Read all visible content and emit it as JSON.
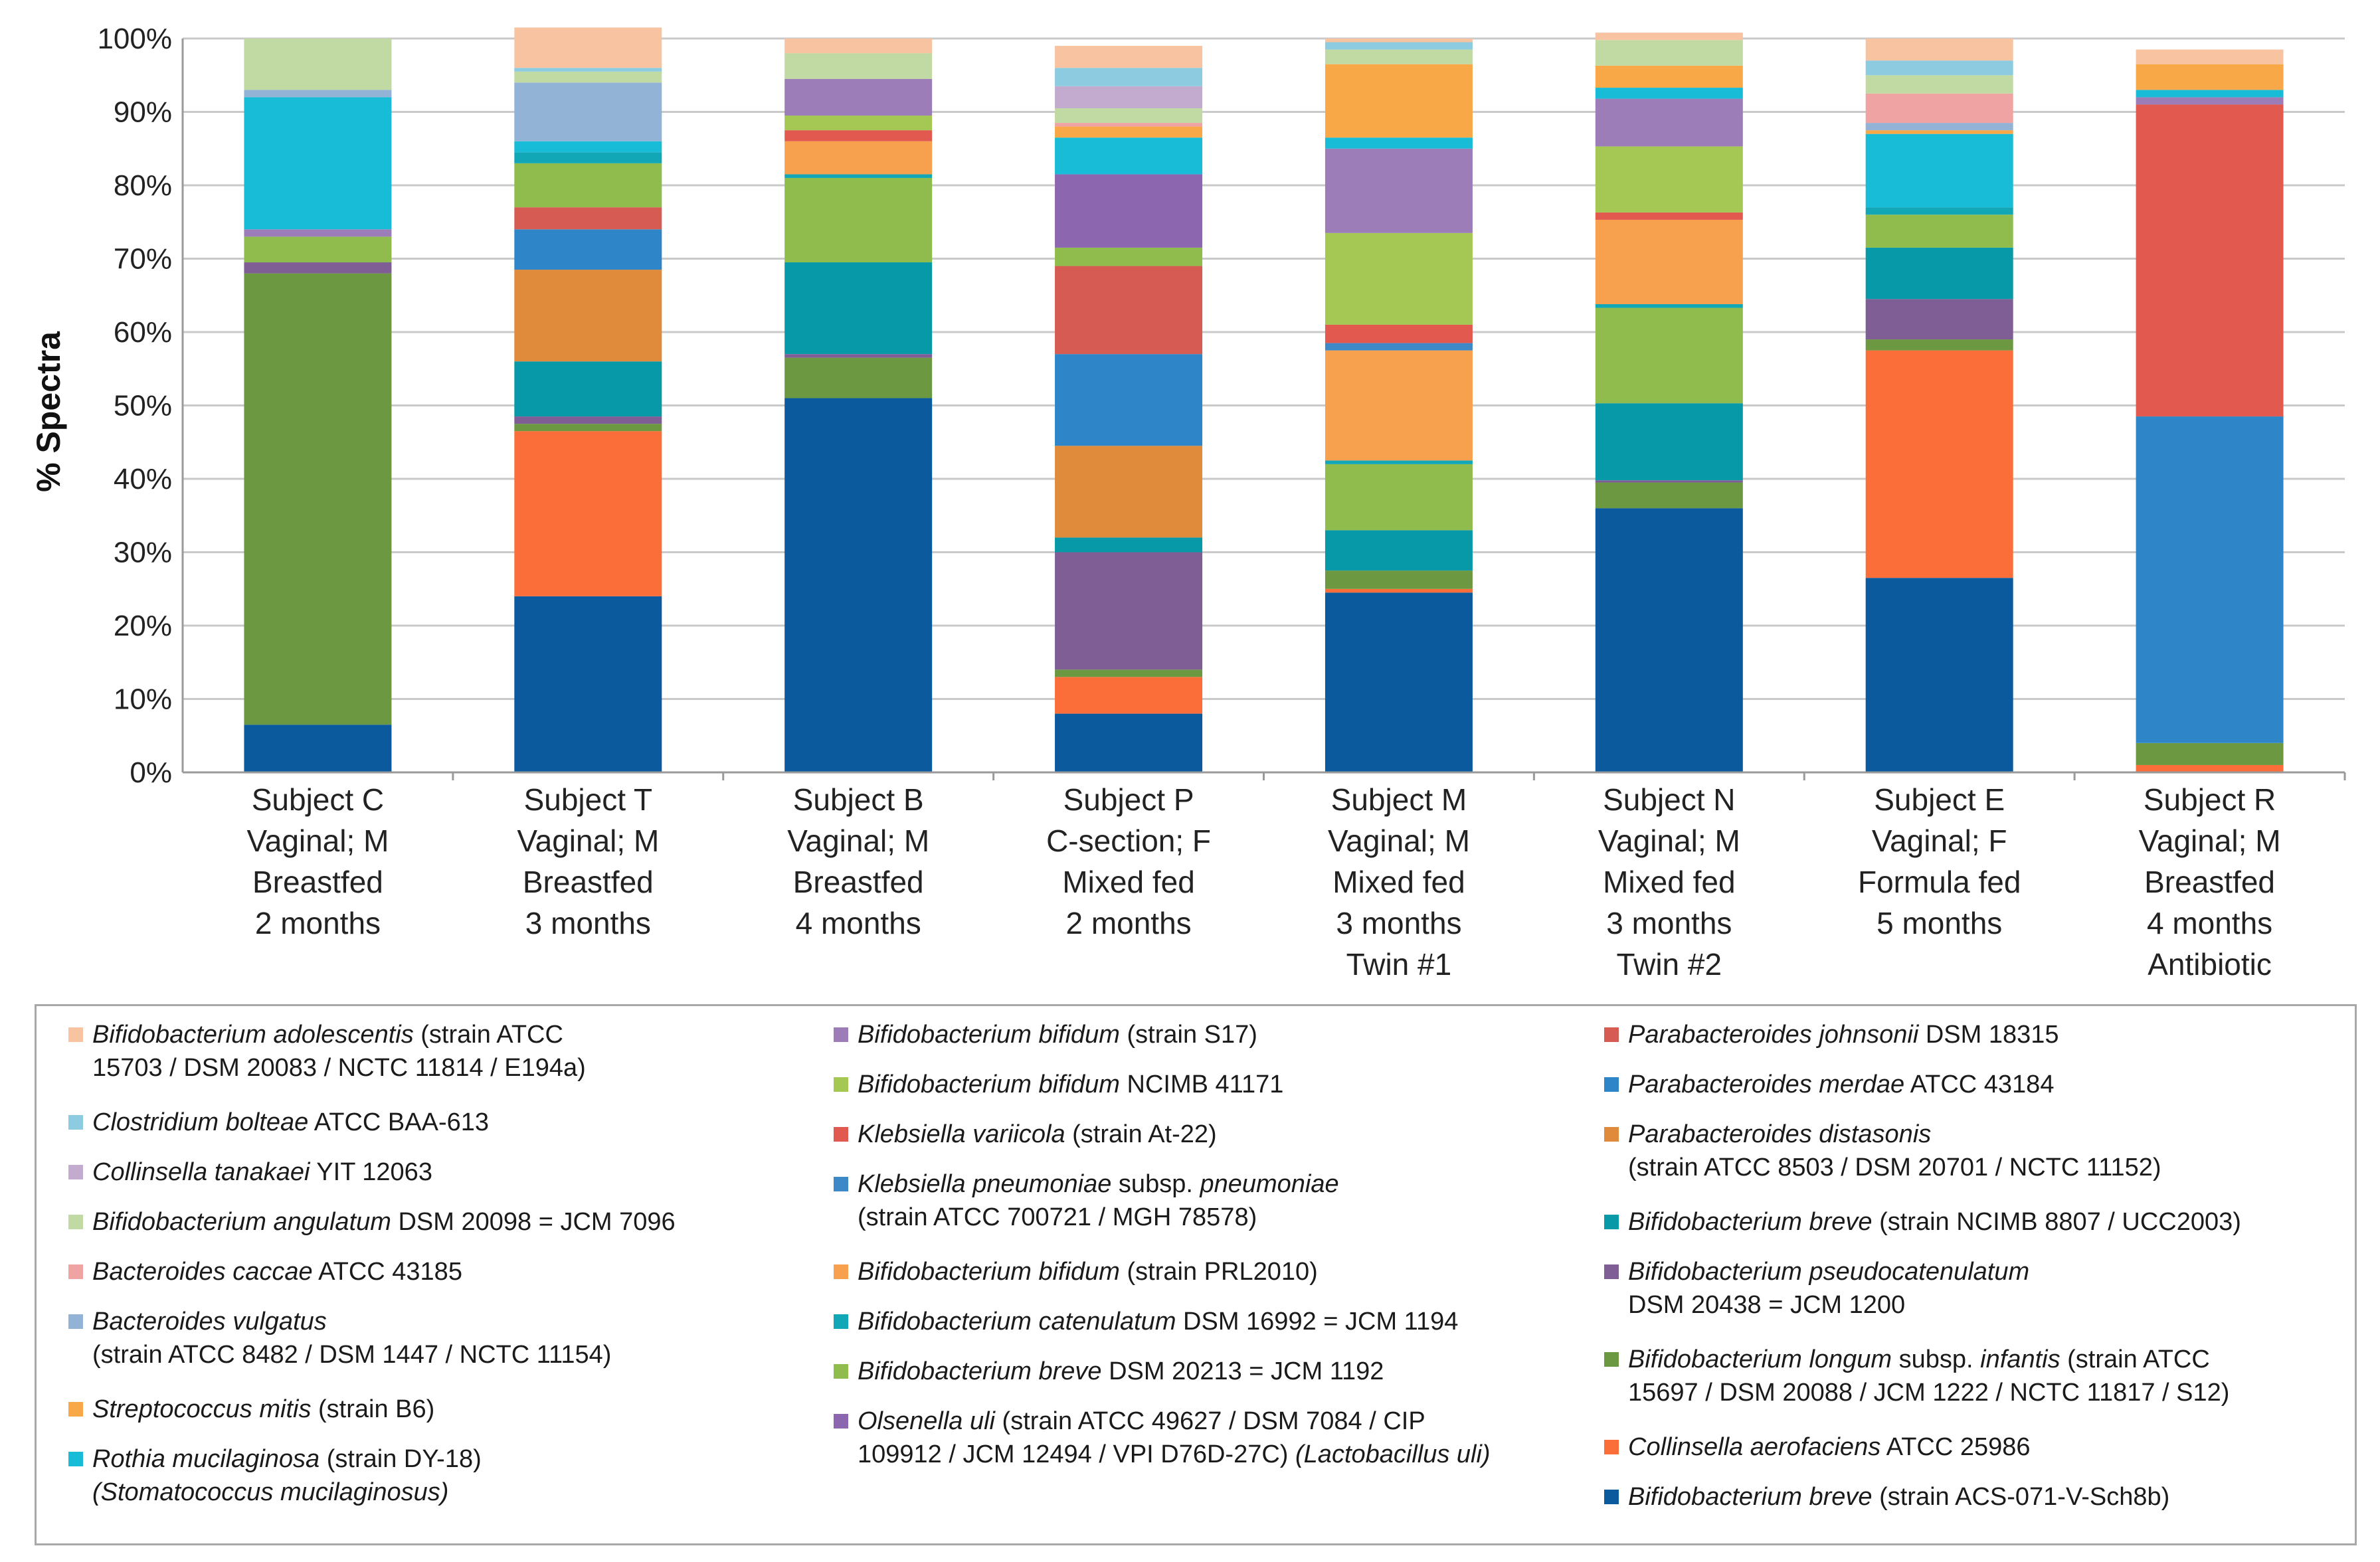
{
  "chart_data": {
    "type": "stacked-bar",
    "ylabel": "% Spectra",
    "ylim": [
      0,
      100
    ],
    "yticks": [
      "0%",
      "10%",
      "20%",
      "30%",
      "40%",
      "50%",
      "60%",
      "70%",
      "80%",
      "90%",
      "100%"
    ],
    "grid": true,
    "legend_position": "bottom",
    "categories": [
      [
        "Subject C",
        "Vaginal; M",
        "Breastfed",
        "2 months"
      ],
      [
        "Subject T",
        "Vaginal; M",
        "Breastfed",
        "3 months"
      ],
      [
        "Subject B",
        "Vaginal; M",
        "Breastfed",
        "4 months"
      ],
      [
        "Subject P",
        "C-section; F",
        "Mixed fed",
        "2 months"
      ],
      [
        "Subject M",
        "Vaginal; M",
        "Mixed fed",
        "3 months",
        "Twin #1"
      ],
      [
        "Subject N",
        "Vaginal; M",
        "Mixed fed",
        "3 months",
        "Twin #2"
      ],
      [
        "Subject E",
        "Vaginal; F",
        "Formula fed",
        "5 months"
      ],
      [
        "Subject R",
        "Vaginal; M",
        "Breastfed",
        "4 months",
        "Antibiotic"
      ]
    ],
    "series": [
      {
        "id": "bb_acs",
        "color": "#0b5a9e",
        "values": [
          6.5,
          24,
          51,
          8,
          24.5,
          36,
          26.5,
          0
        ]
      },
      {
        "id": "coll_aero",
        "color": "#fb6e3a",
        "values": [
          0,
          22.5,
          0,
          5,
          0.5,
          0,
          31,
          1
        ]
      },
      {
        "id": "bl_infantis",
        "color": "#6b9840",
        "values": [
          61.5,
          1,
          5.5,
          1,
          2.5,
          3.5,
          1.5,
          3
        ]
      },
      {
        "id": "b_pseudocat",
        "color": "#7f5e96",
        "values": [
          1.5,
          1,
          0.5,
          16,
          0,
          0.3,
          5.5,
          0
        ]
      },
      {
        "id": "bb_ncimb",
        "color": "#0799a8",
        "values": [
          0,
          7.5,
          12.5,
          2,
          5.5,
          10.5,
          7,
          0
        ]
      },
      {
        "id": "p_distasonis",
        "color": "#e08a3c",
        "values": [
          0,
          12.5,
          0,
          12.5,
          0,
          0,
          0,
          0
        ]
      },
      {
        "id": "p_merdae",
        "color": "#2e86c8",
        "values": [
          0,
          5.5,
          0,
          12.5,
          0,
          0,
          0,
          44.5
        ]
      },
      {
        "id": "p_johnsonii",
        "color": "#d65b52",
        "values": [
          0,
          3,
          0,
          12,
          0,
          0,
          0,
          0
        ]
      },
      {
        "id": "b_breve_dsm",
        "color": "#8fbc4c",
        "values": [
          3.5,
          6,
          11.5,
          2.5,
          9,
          13,
          4.5,
          0
        ]
      },
      {
        "id": "b_catenulatum",
        "color": "#12a7b7",
        "values": [
          0,
          1.5,
          0.5,
          0,
          0.5,
          0.5,
          1,
          0
        ]
      },
      {
        "id": "b_bif_prl",
        "color": "#f7a04e",
        "values": [
          0,
          0,
          4.5,
          0,
          15,
          11.5,
          0,
          0
        ]
      },
      {
        "id": "k_pneumoniae",
        "color": "#3d88c7",
        "values": [
          0,
          0,
          0,
          0,
          1,
          0,
          0,
          0
        ]
      },
      {
        "id": "k_variicola",
        "color": "#e2594f",
        "values": [
          0,
          0,
          1.5,
          0,
          2.5,
          1,
          0,
          42.5
        ]
      },
      {
        "id": "b_bif_ncimb",
        "color": "#a5c855",
        "values": [
          0,
          0,
          2,
          0,
          12.5,
          9,
          0,
          0
        ]
      },
      {
        "id": "b_bif_s17",
        "color": "#9c7db8",
        "values": [
          1,
          0,
          5,
          0,
          11.5,
          6.5,
          0,
          1
        ]
      },
      {
        "id": "olsenella",
        "color": "#8d66b0",
        "values": [
          0,
          0,
          0,
          10,
          0,
          0,
          0,
          0
        ]
      },
      {
        "id": "rothia",
        "color": "#18bcd6",
        "values": [
          18,
          1.5,
          0,
          5,
          1.5,
          1.5,
          10,
          1
        ]
      },
      {
        "id": "strep_mitis",
        "color": "#f9a848",
        "values": [
          0,
          0,
          0,
          1.5,
          10,
          3,
          0.5,
          3.5
        ]
      },
      {
        "id": "b_vulgatus",
        "color": "#93b3d6",
        "values": [
          1,
          8,
          0,
          0,
          0,
          0,
          1,
          0
        ]
      },
      {
        "id": "b_caccae",
        "color": "#f0a3a3",
        "values": [
          0,
          0,
          0,
          0.5,
          0,
          0,
          4,
          0
        ]
      },
      {
        "id": "b_angulatum",
        "color": "#c1d9a3",
        "values": [
          7,
          1.5,
          3.5,
          2,
          2,
          3.5,
          2.5,
          0
        ]
      },
      {
        "id": "collinsella_tan",
        "color": "#c3abd0",
        "values": [
          0,
          0,
          0,
          3,
          0,
          0,
          0,
          0
        ]
      },
      {
        "id": "clostridium",
        "color": "#8ccbe0",
        "values": [
          0,
          0.5,
          0,
          2.5,
          1,
          0,
          2,
          0
        ]
      },
      {
        "id": "b_adolescentis",
        "color": "#f8c3a0",
        "values": [
          0,
          5.5,
          2,
          3,
          0.5,
          1,
          3,
          2
        ]
      }
    ]
  },
  "legend": {
    "columns": [
      [
        {
          "series": "b_adolescentis",
          "lines": [
            [
              {
                "t": "Bifidobacterium adolescentis",
                "i": true
              },
              {
                "t": " (strain ATCC"
              }
            ],
            [
              {
                "t": "15703 / DSM 20083 / NCTC 11814 / E194a)"
              }
            ]
          ]
        },
        {
          "series": "clostridium",
          "lines": [
            [
              {
                "t": "Clostridium bolteae",
                "i": true
              },
              {
                "t": " ATCC BAA-613"
              }
            ]
          ]
        },
        {
          "series": "collinsella_tan",
          "lines": [
            [
              {
                "t": "Collinsella tanakaei",
                "i": true
              },
              {
                "t": " YIT 12063"
              }
            ]
          ]
        },
        {
          "series": "b_angulatum",
          "lines": [
            [
              {
                "t": "Bifidobacterium angulatum",
                "i": true
              },
              {
                "t": " DSM 20098 = JCM 7096"
              }
            ]
          ]
        },
        {
          "series": "b_caccae",
          "lines": [
            [
              {
                "t": "Bacteroides caccae",
                "i": true
              },
              {
                "t": " ATCC 43185"
              }
            ]
          ]
        },
        {
          "series": "b_vulgatus",
          "lines": [
            [
              {
                "t": "Bacteroides vulgatus",
                "i": true
              }
            ],
            [
              {
                "t": "(strain ATCC 8482 / DSM 1447 / NCTC 11154)"
              }
            ]
          ]
        },
        {
          "series": "strep_mitis",
          "lines": [
            [
              {
                "t": "Streptococcus mitis",
                "i": true
              },
              {
                "t": " (strain B6)"
              }
            ]
          ]
        },
        {
          "series": "rothia",
          "lines": [
            [
              {
                "t": "Rothia mucilaginosa",
                "i": true
              },
              {
                "t": " (strain DY-18)"
              }
            ],
            [
              {
                "t": "(Stomatococcus mucilaginosus)",
                "i": true
              }
            ]
          ]
        }
      ],
      [
        {
          "series": "b_bif_s17",
          "lines": [
            [
              {
                "t": "Bifidobacterium bifidum",
                "i": true
              },
              {
                "t": " (strain S17)"
              }
            ]
          ]
        },
        {
          "series": "b_bif_ncimb",
          "lines": [
            [
              {
                "t": "Bifidobacterium bifidum",
                "i": true
              },
              {
                "t": " NCIMB 41171"
              }
            ]
          ]
        },
        {
          "series": "k_variicola",
          "lines": [
            [
              {
                "t": "Klebsiella variicola",
                "i": true
              },
              {
                "t": " (strain At-22)"
              }
            ]
          ]
        },
        {
          "series": "k_pneumoniae",
          "lines": [
            [
              {
                "t": "Klebsiella pneumoniae",
                "i": true
              },
              {
                "t": " subsp. "
              },
              {
                "t": "pneumoniae",
                "i": true
              }
            ],
            [
              {
                "t": "(strain ATCC 700721 / MGH 78578)"
              }
            ]
          ]
        },
        {
          "series": "b_bif_prl",
          "lines": [
            [
              {
                "t": "Bifidobacterium bifidum",
                "i": true
              },
              {
                "t": " (strain PRL2010)"
              }
            ]
          ]
        },
        {
          "series": "b_catenulatum",
          "lines": [
            [
              {
                "t": "Bifidobacterium catenulatum",
                "i": true
              },
              {
                "t": " DSM 16992 = JCM 1194"
              }
            ]
          ]
        },
        {
          "series": "b_breve_dsm",
          "lines": [
            [
              {
                "t": "Bifidobacterium breve",
                "i": true
              },
              {
                "t": " DSM 20213 = JCM 1192"
              }
            ]
          ]
        },
        {
          "series": "olsenella",
          "lines": [
            [
              {
                "t": "Olsenella uli",
                "i": true
              },
              {
                "t": " (strain ATCC 49627 / DSM 7084 / CIP"
              }
            ],
            [
              {
                "t": "109912 / JCM 12494 / VPI D76D-27C) "
              },
              {
                "t": "(Lactobacillus uli)",
                "i": true
              }
            ]
          ]
        }
      ],
      [
        {
          "series": "p_johnsonii",
          "lines": [
            [
              {
                "t": "Parabacteroides johnsonii",
                "i": true
              },
              {
                "t": " DSM 18315"
              }
            ]
          ]
        },
        {
          "series": "p_merdae",
          "lines": [
            [
              {
                "t": "Parabacteroides merdae",
                "i": true
              },
              {
                "t": " ATCC 43184"
              }
            ]
          ]
        },
        {
          "series": "p_distasonis",
          "lines": [
            [
              {
                "t": "Parabacteroides distasonis",
                "i": true
              }
            ],
            [
              {
                "t": "(strain ATCC 8503 / DSM 20701 / NCTC 11152)"
              }
            ]
          ]
        },
        {
          "series": "bb_ncimb",
          "lines": [
            [
              {
                "t": "Bifidobacterium breve",
                "i": true
              },
              {
                "t": " (strain NCIMB 8807 / UCC2003)"
              }
            ]
          ]
        },
        {
          "series": "b_pseudocat",
          "lines": [
            [
              {
                "t": "Bifidobacterium pseudocatenulatum",
                "i": true
              }
            ],
            [
              {
                "t": "DSM 20438 = JCM 1200"
              }
            ]
          ]
        },
        {
          "series": "bl_infantis",
          "lines": [
            [
              {
                "t": "Bifidobacterium longum",
                "i": true
              },
              {
                "t": " subsp. "
              },
              {
                "t": "infantis",
                "i": true
              },
              {
                "t": " (strain ATCC"
              }
            ],
            [
              {
                "t": "15697 / DSM 20088 / JCM 1222 / NCTC 11817 / S12)"
              }
            ]
          ]
        },
        {
          "series": "coll_aero",
          "lines": [
            [
              {
                "t": "Collinsella aerofaciens",
                "i": true
              },
              {
                "t": " ATCC 25986"
              }
            ]
          ]
        },
        {
          "series": "bb_acs",
          "lines": [
            [
              {
                "t": "Bifidobacterium breve",
                "i": true
              },
              {
                "t": " (strain ACS-071-V-Sch8b)"
              }
            ]
          ]
        }
      ]
    ]
  }
}
